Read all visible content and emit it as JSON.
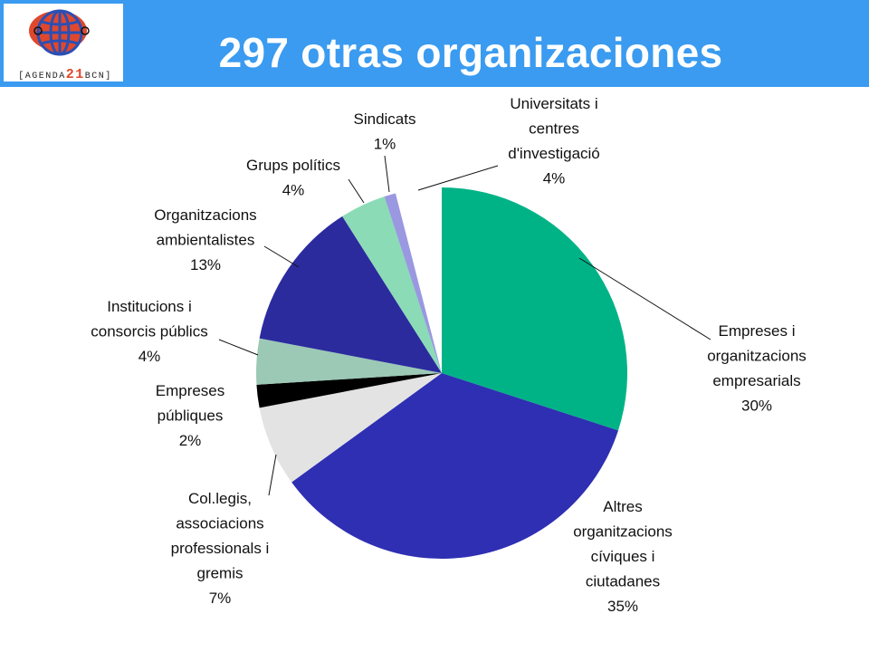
{
  "header": {
    "title": "297 otras organizaciones",
    "background": "#3a9bf0"
  },
  "logo": {
    "text_pre": "[AGENDA",
    "text_num": "21",
    "text_post": "BCN]",
    "icon": "globe-icon"
  },
  "chart_data": {
    "type": "pie",
    "title": "297 otras organizaciones",
    "start_angle_deg": 0,
    "direction": "clockwise",
    "slices": [
      {
        "name": "Empreses i organitzacions empresarials",
        "lines": [
          "Empreses i",
          "organitzacions",
          "empresarials"
        ],
        "pct_label": "30%",
        "value": 30,
        "color": "#00b386"
      },
      {
        "name": "Altres organitzacions cíviques i ciutadanes",
        "lines": [
          "Altres",
          "organitzacions",
          "cíviques i",
          "ciutadanes"
        ],
        "pct_label": "35%",
        "value": 35,
        "color": "#2e2fb2"
      },
      {
        "name": "Col.legis, associacions professionals i gremis",
        "lines": [
          "Col.legis,",
          "associacions",
          "professionals i",
          "gremis"
        ],
        "pct_label": "7%",
        "value": 7,
        "color": "#e3e3e3"
      },
      {
        "name": "Empreses públiques",
        "lines": [
          "Empreses",
          "públiques"
        ],
        "pct_label": "2%",
        "value": 2,
        "color": "#000000"
      },
      {
        "name": "Institucions i consorcis públics",
        "lines": [
          "Institucions i",
          "consorcis públics"
        ],
        "pct_label": "4%",
        "value": 4,
        "color": "#9bc9b6"
      },
      {
        "name": "Organitzacions ambientalistes",
        "lines": [
          "Organitzacions",
          "ambientalistes"
        ],
        "pct_label": "13%",
        "value": 13,
        "color": "#2b2b9e"
      },
      {
        "name": "Grups polítics",
        "lines": [
          "Grups polítics"
        ],
        "pct_label": "4%",
        "value": 4,
        "color": "#8adbb6"
      },
      {
        "name": "Sindicats",
        "lines": [
          "Sindicats"
        ],
        "pct_label": "1%",
        "value": 1,
        "color": "#9a98e0"
      },
      {
        "name": "Universitats i centres d'investigació",
        "lines": [
          "Universitats i",
          "centres",
          "d'investigació"
        ],
        "pct_label": "4%",
        "value": 4,
        "color": "#ffffff"
      }
    ]
  }
}
